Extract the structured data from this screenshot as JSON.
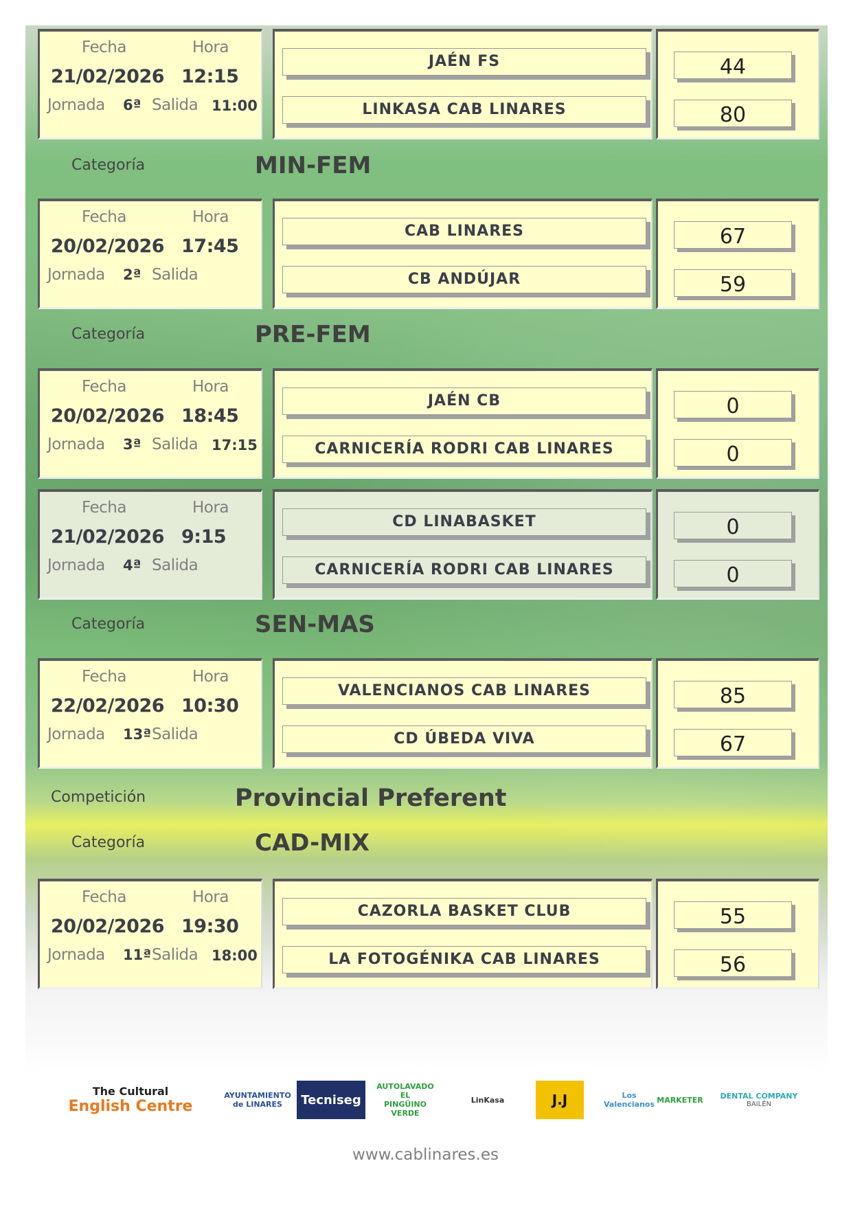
{
  "labels": {
    "fecha": "Fecha",
    "hora": "Hora",
    "jornada": "Jornada",
    "salida": "Salida",
    "categoria": "Categoría",
    "competicion": "Competición"
  },
  "items": [
    {
      "type": "match",
      "date": "21/02/2026",
      "time": "12:15",
      "round": "6ª",
      "departure": "11:00",
      "home": "JAÉN FS",
      "away": "LINKASA CAB LINARES",
      "home_score": "44",
      "away_score": "80"
    },
    {
      "type": "category",
      "value": "MIN-FEM"
    },
    {
      "type": "match",
      "date": "20/02/2026",
      "time": "17:45",
      "round": "2ª",
      "departure": "",
      "home": "CAB LINARES",
      "away": "CB ANDÚJAR",
      "home_score": "67",
      "away_score": "59"
    },
    {
      "type": "category",
      "value": "PRE-FEM"
    },
    {
      "type": "match",
      "date": "20/02/2026",
      "time": "18:45",
      "round": "3ª",
      "departure": "17:15",
      "home": "JAÉN CB",
      "away": "CARNICERÍA RODRI CAB LINARES",
      "home_score": "0",
      "away_score": "0"
    },
    {
      "type": "match",
      "highlight": "grey",
      "date": "21/02/2026",
      "time": "9:15",
      "round": "4ª",
      "departure": "",
      "home": "CD LINABASKET",
      "away": "CARNICERÍA RODRI CAB LINARES",
      "home_score": "0",
      "away_score": "0"
    },
    {
      "type": "category",
      "value": "SEN-MAS"
    },
    {
      "type": "match",
      "date": "22/02/2026",
      "time": "10:30",
      "round": "13ª",
      "departure": "",
      "home": "VALENCIANOS CAB LINARES",
      "away": "CD ÚBEDA VIVA",
      "home_score": "85",
      "away_score": "67"
    },
    {
      "type": "competition",
      "value": "Provincial Preferent"
    },
    {
      "type": "category",
      "value": "CAD-MIX"
    },
    {
      "type": "match",
      "date": "20/02/2026",
      "time": "19:30",
      "round": "11ª",
      "departure": "18:00",
      "home": "CAZORLA BASKET CLUB",
      "away": "LA FOTOGÉNIKA CAB LINARES",
      "home_score": "55",
      "away_score": "56"
    }
  ],
  "sponsors": [
    {
      "name": "The Cultural English Centre",
      "line1": "The Cultural",
      "line2": "English Centre",
      "color": "#e87a1e"
    },
    {
      "name": "Ayuntamiento de Linares",
      "line1": "AYUNTAMIENTO",
      "line2": "de LINARES",
      "color": "#2a4fa0"
    },
    {
      "name": "Tecniseg",
      "line1": "Tecniseg",
      "line2": "",
      "color": "#1f3166"
    },
    {
      "name": "Autolavado El Pingüino Verde",
      "line1": "AUTOLAVADO",
      "line2": "EL PINGÜINO VERDE",
      "color": "#2e9e3e"
    },
    {
      "name": "Linkasa",
      "line1": "LinKasa",
      "line2": "",
      "color": "#333333"
    },
    {
      "name": "J.J",
      "line1": "J.J",
      "line2": "",
      "color": "#f2c200"
    },
    {
      "name": "Los Valencianos",
      "line1": "Los Valencianos",
      "line2": "",
      "color": "#3a8fd0"
    },
    {
      "name": "Marketer",
      "line1": "MARKETER",
      "line2": "",
      "color": "#2e9e3e"
    },
    {
      "name": "Dental Company",
      "line1": "DENTAL COMPANY",
      "line2": "BAILÉN",
      "color": "#2fa8b8"
    }
  ],
  "website": "www.cablinares.es"
}
